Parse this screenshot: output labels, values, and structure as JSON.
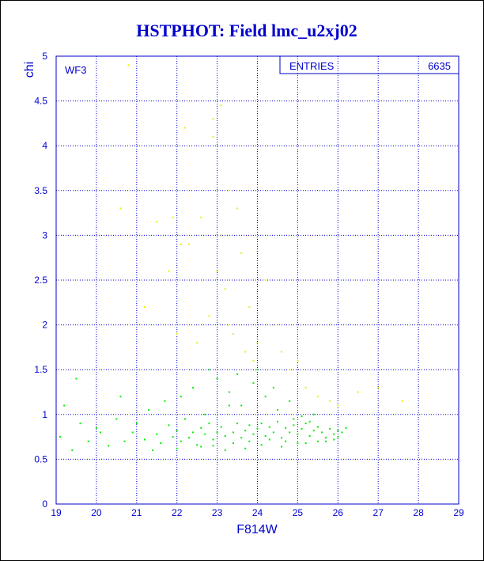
{
  "chart_data": {
    "type": "scatter",
    "title": "HSTPHOT: Field lmc_u2xj02",
    "x_label": "F814W",
    "y_label": "chi",
    "annotation": "WF3",
    "stats": {
      "label": "ENTRIES",
      "value": "6635"
    },
    "xlim": [
      19,
      29
    ],
    "xticks": [
      19,
      20,
      21,
      22,
      23,
      24,
      25,
      26,
      27,
      28,
      29
    ],
    "ylim": [
      0,
      5
    ],
    "yticks": [
      0,
      0.5,
      1,
      1.5,
      2,
      2.5,
      3,
      3.5,
      4,
      4.5,
      5
    ],
    "grid": true,
    "series": [
      {
        "color": "#00ee00",
        "x": [
          19.1,
          19.2,
          19.4,
          19.6,
          19.8,
          20.0,
          20.1,
          20.3,
          20.5,
          20.7,
          20.9,
          21.0,
          21.2,
          21.3,
          21.5,
          21.6,
          21.8,
          21.9,
          22.0,
          22.1,
          22.2,
          22.3,
          22.4,
          22.5,
          22.6,
          22.7,
          22.8,
          22.9,
          23.0,
          23.1,
          23.2,
          23.3,
          23.4,
          23.5,
          23.6,
          23.7,
          23.8,
          23.9,
          24.0,
          24.1,
          24.2,
          24.3,
          24.4,
          24.5,
          24.6,
          24.7,
          24.8,
          24.9,
          25.0,
          25.1,
          25.2,
          25.3,
          25.4,
          25.5,
          25.6,
          25.7,
          25.8,
          25.9,
          26.0,
          26.1,
          22.1,
          22.4,
          22.7,
          23.0,
          23.3,
          23.6,
          23.9,
          24.2,
          24.5,
          24.8,
          25.1,
          25.4,
          25.7,
          26.0,
          22.9,
          23.4,
          23.8,
          24.3,
          24.7,
          25.2,
          21.4,
          22.0,
          22.6,
          23.2,
          23.7,
          24.1,
          24.6,
          25.0,
          25.5,
          25.9,
          19.5,
          20.6,
          21.7,
          22.8,
          23.5,
          24.0,
          24.4,
          24.9,
          25.3,
          26.2
        ],
        "values": [
          0.75,
          1.1,
          0.6,
          0.9,
          0.7,
          0.85,
          0.8,
          0.65,
          0.95,
          0.7,
          0.8,
          0.9,
          0.72,
          1.05,
          0.78,
          0.68,
          0.88,
          0.75,
          0.82,
          0.7,
          0.95,
          0.74,
          0.8,
          0.66,
          0.85,
          0.78,
          0.9,
          0.72,
          0.8,
          0.86,
          0.76,
          1.1,
          0.8,
          0.9,
          0.74,
          0.82,
          0.88,
          0.78,
          0.84,
          0.9,
          0.76,
          0.86,
          0.8,
          0.92,
          0.74,
          0.85,
          0.8,
          0.88,
          0.78,
          0.84,
          0.9,
          0.76,
          0.82,
          0.86,
          0.8,
          0.74,
          0.84,
          0.78,
          0.82,
          0.8,
          1.2,
          1.3,
          1.0,
          1.4,
          1.25,
          1.1,
          1.35,
          1.2,
          1.05,
          1.15,
          0.98,
          1.0,
          0.7,
          0.75,
          0.65,
          0.68,
          0.7,
          0.72,
          0.7,
          0.68,
          0.6,
          0.62,
          0.64,
          0.6,
          0.62,
          0.66,
          0.64,
          0.68,
          0.7,
          0.72,
          1.4,
          1.2,
          1.15,
          1.5,
          1.45,
          1.5,
          1.3,
          0.95,
          0.92,
          0.85
        ]
      },
      {
        "color": "#eeee00",
        "x": [
          20.6,
          21.2,
          21.5,
          21.8,
          22.0,
          22.2,
          22.3,
          22.5,
          22.6,
          22.8,
          22.9,
          23.0,
          23.1,
          23.2,
          23.3,
          23.4,
          23.5,
          23.6,
          23.7,
          23.8,
          23.9,
          24.0,
          24.2,
          24.4,
          24.6,
          24.8,
          25.0,
          25.2,
          25.5,
          25.8,
          26.0,
          26.5,
          27.0,
          27.6,
          20.8,
          22.9,
          23.1,
          22.1,
          21.9,
          23.3
        ],
        "values": [
          3.3,
          2.2,
          3.15,
          2.6,
          1.9,
          4.2,
          2.9,
          1.8,
          3.2,
          2.1,
          4.3,
          2.6,
          3.0,
          2.4,
          2.0,
          1.9,
          3.3,
          2.8,
          1.7,
          2.2,
          1.6,
          1.8,
          2.5,
          2.0,
          1.7,
          1.5,
          1.6,
          1.3,
          1.2,
          1.15,
          1.1,
          1.25,
          1.3,
          1.15,
          4.9,
          4.1,
          4.45,
          2.9,
          3.2,
          3.5
        ]
      }
    ]
  }
}
